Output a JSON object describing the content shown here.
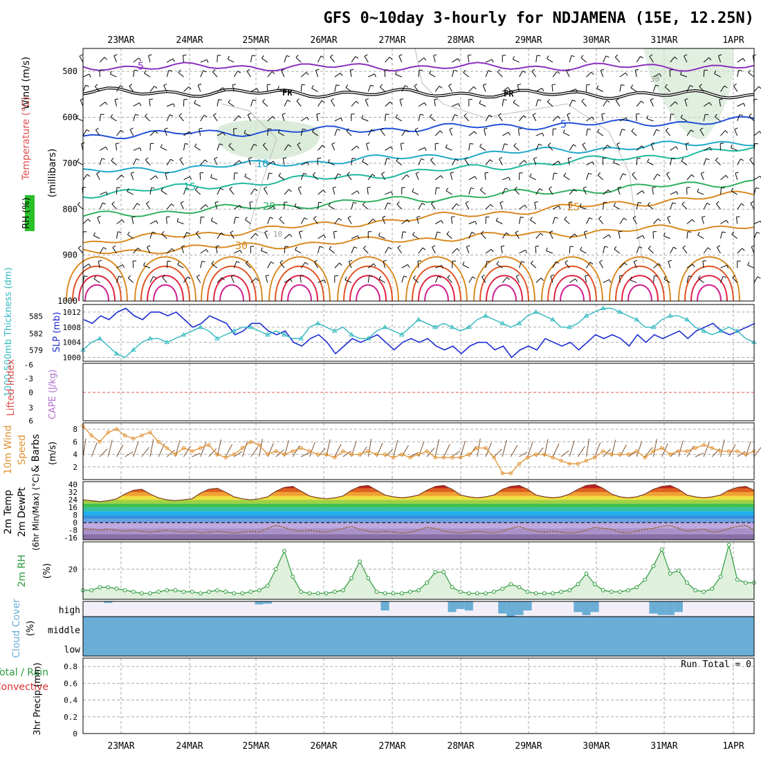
{
  "chart_data": {
    "type": "meteogram",
    "title": "GFS 0~10day 3-hourly for NDJAMENA (15E, 12.25N)",
    "dates": [
      "23MAR",
      "24MAR",
      "25MAR",
      "26MAR",
      "27MAR",
      "28MAR",
      "29MAR",
      "30MAR",
      "31MAR",
      "1APR"
    ],
    "colors": {
      "purple": "#8a2fbf",
      "blue": "#2050d8",
      "cyan": "#20a8c8",
      "teal": "#20b8a0",
      "green": "#30b060",
      "orange": "#d88a20",
      "red": "#e02040",
      "magenta": "#d02090",
      "slp": "#1a2ad0",
      "thk": "#30b8c0",
      "wind": "#e09030",
      "rh": "#2a9a3a",
      "cloud": "#6aaed6",
      "grid": "#aaaaaa"
    },
    "upper": {
      "ylabel_wind": "Wind (m/s)",
      "ylabel_temp": "Temperature (°C)",
      "ylabel_rh": "RH (%)",
      "ylabel_pressure": "(millibars)",
      "yticks": [
        "500",
        "600",
        "700",
        "800",
        "900",
        "1000"
      ],
      "ylim": [
        450,
        1000
      ],
      "isotherms": [
        {
          "value": -5,
          "p": 490,
          "label": "-5",
          "color": "purple"
        },
        {
          "value": 0,
          "p": 545,
          "label": "FR",
          "color": "black"
        },
        {
          "value": 5,
          "p": 625,
          "label": "5",
          "color": "blue"
        },
        {
          "value": 10,
          "p": 690,
          "label": "10",
          "color": "cyan"
        },
        {
          "value": 15,
          "p": 745,
          "label": "15",
          "color": "teal"
        },
        {
          "value": 20,
          "p": 800,
          "label": "20",
          "color": "green"
        },
        {
          "value": 25,
          "p": 850,
          "label": "25",
          "color": "orange"
        },
        {
          "value": 30,
          "p": 895,
          "label": "30",
          "color": "orange"
        }
      ],
      "rh_labels": [
        "10",
        "30"
      ]
    },
    "thickness": {
      "ylabel_left": "1000-500mb Thickness (dm)",
      "ylabel_right": "SLP (mb)",
      "thk_ticks": [
        "585",
        "582",
        "579"
      ],
      "slp_ticks": [
        "1012",
        "1008",
        "1004",
        "1000"
      ],
      "slp_range": [
        999,
        1014
      ],
      "slp": [
        1010,
        1009,
        1011,
        1010,
        1012,
        1013,
        1011,
        1010,
        1012,
        1012,
        1011,
        1012,
        1010,
        1008,
        1009,
        1011,
        1010,
        1009,
        1006,
        1007,
        1009,
        1009,
        1007,
        1006,
        1007,
        1004,
        1003,
        1005,
        1006,
        1004,
        1001,
        1003,
        1005,
        1004,
        1005,
        1006,
        1004,
        1002,
        1004,
        1005,
        1004,
        1005,
        1003,
        1002,
        1003,
        1001,
        1003,
        1004,
        1004,
        1002,
        1003,
        1000,
        1002,
        1003,
        1002,
        1005,
        1004,
        1003,
        1004,
        1002,
        1004,
        1006,
        1005,
        1006,
        1005,
        1003,
        1006,
        1004,
        1006,
        1005,
        1006,
        1007,
        1005,
        1007,
        1008,
        1009,
        1007,
        1006,
        1007,
        1008,
        1009
      ],
      "thk": [
        1002,
        1004,
        1005,
        1003,
        1001,
        1000,
        1002,
        1004,
        1005,
        1005,
        1004,
        1005,
        1006,
        1007,
        1008,
        1007,
        1005,
        1006,
        1007,
        1008,
        1008,
        1007,
        1006,
        1007,
        1006,
        1005,
        1005,
        1008,
        1009,
        1008,
        1007,
        1008,
        1006,
        1005,
        1005,
        1007,
        1008,
        1007,
        1006,
        1008,
        1010,
        1009,
        1008,
        1009,
        1008,
        1007,
        1008,
        1010,
        1011,
        1010,
        1009,
        1008,
        1009,
        1011,
        1012,
        1011,
        1010,
        1008,
        1008,
        1009,
        1011,
        1012,
        1013,
        1013,
        1012,
        1011,
        1010,
        1008,
        1008,
        1010,
        1011,
        1011,
        1010,
        1008,
        1007,
        1006,
        1007,
        1008,
        1007,
        1005,
        1004
      ]
    },
    "cape": {
      "ylabel_li": "Lifted Index",
      "ylabel_cape": "CAPE (J/kg)",
      "yticks": [
        "-6",
        "-3",
        "0",
        "3",
        "6"
      ]
    },
    "wind10m": {
      "ylabel_1": "10m Wind",
      "ylabel_2": "Speed",
      "ylabel_3": "& Barbs",
      "ylabel_4": "(m/s)",
      "yticks": [
        "8",
        "6",
        "4",
        "2"
      ],
      "ylim": [
        0,
        9
      ],
      "speed": [
        8.5,
        7,
        6,
        7.5,
        8,
        7,
        6.5,
        7,
        7.5,
        6,
        5,
        4,
        5,
        4.5,
        5,
        5.5,
        4,
        3.5,
        4,
        5,
        6,
        5.5,
        4,
        4.5,
        4,
        4.5,
        5,
        4.5,
        4,
        4,
        3.5,
        4.5,
        4,
        4,
        4.5,
        4,
        4,
        3.5,
        4,
        3.5,
        4,
        4.5,
        3.5,
        3.5,
        3.5,
        3.5,
        4,
        5,
        5,
        3.5,
        1,
        1,
        2.5,
        3.5,
        4,
        4,
        3.5,
        3,
        2.5,
        2.5,
        3,
        3.5,
        4.5,
        4,
        4,
        4,
        4.5,
        3.5,
        4.5,
        5,
        4,
        4.5,
        4.5,
        5,
        5.5,
        5,
        4.5,
        4.5,
        4.5,
        4,
        4.5
      ]
    },
    "temp2m": {
      "ylabel_1": "2m Temp",
      "ylabel_2": "2m DewPt",
      "ylabel_3": "(6hr Min/Max) (°C)",
      "yticks": [
        "40",
        "32",
        "24",
        "16",
        "8",
        "0",
        "-8",
        "-16"
      ],
      "ylim": [
        -18,
        43
      ],
      "temp": [
        24,
        23,
        22,
        23,
        25,
        30,
        34,
        35,
        30,
        26,
        24,
        23,
        24,
        25,
        31,
        35,
        36,
        32,
        27,
        25,
        24,
        25,
        27,
        33,
        37,
        38,
        33,
        28,
        26,
        25,
        26,
        28,
        34,
        38,
        39,
        34,
        29,
        27,
        26,
        27,
        29,
        34,
        38,
        39,
        35,
        29,
        27,
        26,
        27,
        29,
        35,
        38,
        39,
        35,
        29,
        27,
        26,
        27,
        30,
        35,
        39,
        40,
        36,
        30,
        27,
        26,
        27,
        30,
        35,
        38,
        39,
        35,
        29,
        27,
        26,
        27,
        29,
        34,
        37,
        38,
        34
      ],
      "dew": [
        -6,
        -7,
        -8,
        -7,
        -8,
        -9,
        -8,
        -9,
        -10,
        -9,
        -8,
        -9,
        -10,
        -9,
        -11,
        -10,
        -9,
        -10,
        -11,
        -10,
        -9,
        -10,
        -6,
        -3,
        -5,
        -8,
        -9,
        -8,
        -9,
        -10,
        -8,
        -6,
        -4,
        -7,
        -9,
        -10,
        -9,
        -10,
        -11,
        -10,
        -8,
        -5,
        -6,
        -9,
        -10,
        -11,
        -10,
        -9,
        -10,
        -11,
        -9,
        -6,
        -4,
        -7,
        -9,
        -10,
        -9,
        -10,
        -11,
        -10,
        -8,
        -5,
        -6,
        -7,
        -10,
        -11,
        -9,
        -7,
        -6,
        -4,
        -3,
        -6,
        -9,
        -8,
        -7,
        -10,
        -9,
        -6,
        -4,
        -3,
        -8
      ]
    },
    "rh2m": {
      "ylabel_1": "2m RH",
      "ylabel_2": "(%)",
      "yticks": [
        "20"
      ],
      "ylim": [
        0,
        38
      ],
      "values": [
        6,
        6,
        8,
        8,
        7,
        6,
        5,
        4,
        4,
        5,
        6,
        6,
        5,
        5,
        4,
        5,
        6,
        5,
        4,
        4,
        5,
        6,
        9,
        20,
        32,
        15,
        5,
        4,
        4,
        4,
        5,
        6,
        14,
        25,
        14,
        5,
        4,
        4,
        4,
        5,
        6,
        11,
        18,
        18,
        8,
        5,
        4,
        4,
        4,
        5,
        7,
        10,
        8,
        5,
        4,
        4,
        4,
        5,
        6,
        10,
        17,
        10,
        6,
        5,
        5,
        6,
        8,
        13,
        22,
        33,
        17,
        19,
        11,
        6,
        5,
        7,
        15,
        36,
        13,
        11,
        11
      ]
    },
    "cloud": {
      "ylabel_1": "Cloud Cover",
      "ylabel_2": "(%)",
      "levels": [
        "high",
        "middle",
        "low"
      ],
      "high": [
        0,
        0,
        0,
        10,
        0,
        0,
        0,
        0,
        0,
        0,
        0,
        0,
        0,
        0,
        0,
        0,
        0,
        0,
        0,
        0,
        0,
        20,
        15,
        0,
        0,
        0,
        0,
        0,
        0,
        0,
        0,
        0,
        0,
        0,
        0,
        0,
        60,
        0,
        0,
        0,
        0,
        0,
        0,
        0,
        70,
        50,
        60,
        0,
        0,
        0,
        80,
        100,
        90,
        60,
        0,
        0,
        0,
        0,
        0,
        70,
        90,
        70,
        0,
        0,
        0,
        0,
        0,
        0,
        80,
        90,
        90,
        70,
        0,
        0,
        0,
        0,
        0,
        0,
        0,
        0,
        0
      ],
      "middle": 100,
      "low": 100
    },
    "precip": {
      "ylabel_1": "Total / Rain",
      "ylabel_2": "Convective",
      "ylabel_3": "3hr Precip (mm)",
      "yticks": [
        "0.8",
        "0.6",
        "0.4",
        "0.2",
        "0"
      ],
      "ylim": [
        0,
        0.9
      ],
      "run_total": "Run Total = 0"
    }
  }
}
